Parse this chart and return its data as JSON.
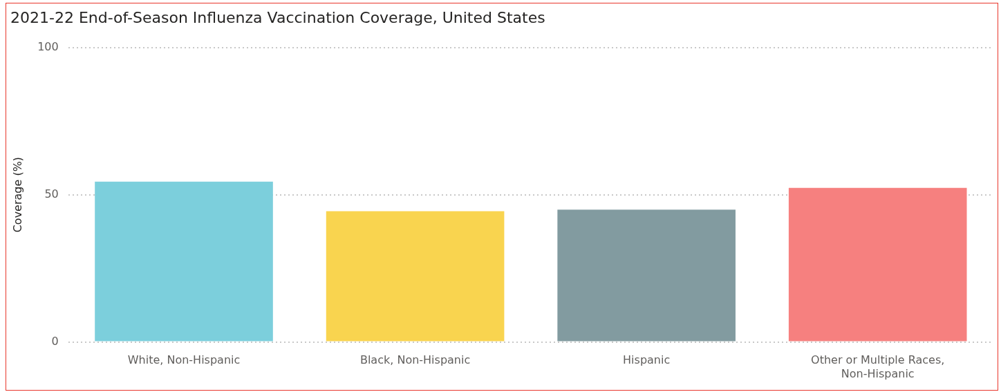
{
  "chart_data": {
    "type": "bar",
    "title": "2021-22 End-of-Season Influenza Vaccination Coverage, United States",
    "ylabel": "Coverage (%)",
    "categories": [
      "White, Non-Hispanic",
      "Black, Non-Hispanic",
      "Hispanic",
      "Other or Multiple Races, Non-Hispanic"
    ],
    "values": [
      54.4,
      44.4,
      44.9,
      52.3
    ],
    "colors": [
      "#7ccfdc",
      "#f9d44f",
      "#829ba0",
      "#f6807f"
    ],
    "ylim": [
      0,
      100
    ],
    "yticks": [
      0,
      50,
      100
    ],
    "grid": "y",
    "legend": false
  }
}
